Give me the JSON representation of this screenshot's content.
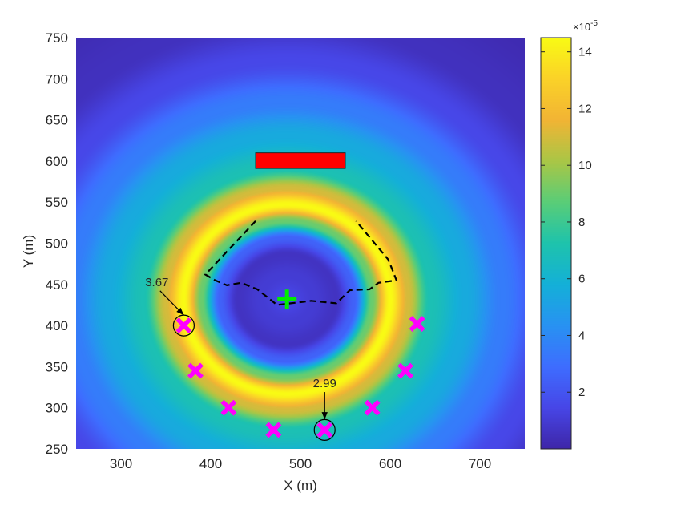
{
  "chart_data": {
    "type": "heatmap",
    "xlabel": "X (m)",
    "ylabel": "Y (m)",
    "xlim": [
      250,
      750
    ],
    "ylim": [
      250,
      750
    ],
    "xticks": [
      300,
      400,
      500,
      600,
      700
    ],
    "yticks": [
      250,
      300,
      350,
      400,
      450,
      500,
      550,
      600,
      650,
      700,
      750
    ],
    "colorbar": {
      "range": [
        0,
        14.5
      ],
      "ticks": [
        2,
        4,
        6,
        8,
        10,
        12,
        14
      ],
      "exponent_label": "×10",
      "exponent": "-5"
    },
    "field": {
      "center": [
        485,
        432
      ],
      "ring_peak_radius": 115,
      "inner_minimum_radius": 55,
      "values_at_radius": [
        [
          0,
          1.5
        ],
        [
          30,
          1.0
        ],
        [
          55,
          0.6
        ],
        [
          75,
          2.5
        ],
        [
          95,
          9.0
        ],
        [
          115,
          14.5
        ],
        [
          135,
          11.0
        ],
        [
          160,
          7.0
        ],
        [
          200,
          5.5
        ],
        [
          240,
          3.5
        ],
        [
          290,
          1.5
        ],
        [
          340,
          0.5
        ],
        [
          420,
          0.2
        ]
      ]
    },
    "rectangle": {
      "x": [
        450,
        550
      ],
      "y": [
        591,
        610
      ],
      "color": "#ff0000"
    },
    "center_marker": {
      "x": 485,
      "y": 432,
      "color": "#00ee00"
    },
    "x_markers": {
      "color": "#ff00ff",
      "points": [
        [
          370,
          400
        ],
        [
          383,
          345
        ],
        [
          420,
          300
        ],
        [
          470,
          273
        ],
        [
          527,
          273
        ],
        [
          580,
          300
        ],
        [
          617,
          345
        ],
        [
          630,
          402
        ]
      ]
    },
    "circled_points": [
      [
        370,
        400
      ],
      [
        527,
        273
      ]
    ],
    "annotations": [
      {
        "text": "3.67",
        "text_x": 340,
        "text_y": 448,
        "target": [
          370,
          400
        ]
      },
      {
        "text": "2.99",
        "text_x": 527,
        "text_y": 325,
        "target": [
          527,
          273
        ]
      }
    ],
    "dashed_boundary": [
      [
        [
          450,
          527
        ],
        [
          394,
          462
        ],
        [
          405,
          455
        ],
        [
          418,
          449
        ],
        [
          434,
          452
        ],
        [
          452,
          444
        ],
        [
          474,
          425
        ],
        [
          512,
          430
        ],
        [
          540,
          427
        ],
        [
          555,
          443
        ],
        [
          577,
          444
        ],
        [
          587,
          452
        ],
        [
          607,
          455
        ],
        [
          598,
          480
        ],
        [
          562,
          527
        ]
      ]
    ]
  }
}
